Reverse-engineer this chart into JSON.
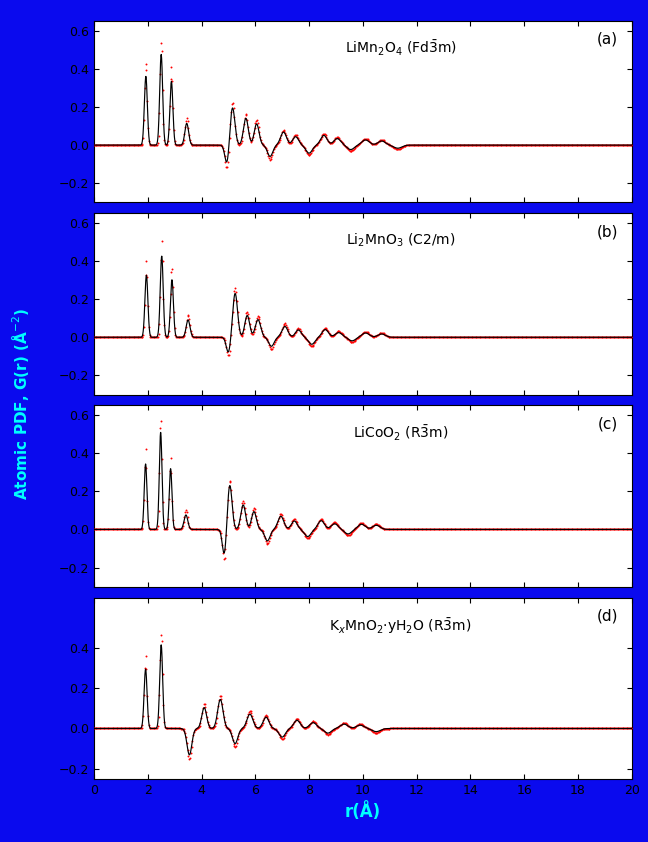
{
  "background_color": "#0a0aee",
  "panel_bg": "#ffffff",
  "fig_width": 6.48,
  "fig_height": 8.42,
  "labels": [
    "(a)",
    "(b)",
    "(c)",
    "(d)"
  ],
  "titles": [
    "LiMn$_2$O$_4$ (Fd$\\bar{3}$m)",
    "Li$_2$MnO$_3$ (C2/m)",
    "LiCoO$_2$ (R$\\bar{3}$m)",
    "K$_x$MnO$_2$$\\cdot$yH$_2$O (R$\\bar{3}$m)"
  ],
  "xlabel": "r(Å)",
  "ylabel": "Atomic PDF, G(r) (Å$^{-2}$)",
  "xlim": [
    0,
    20
  ],
  "ylim": [
    -0.3,
    0.65
  ],
  "ylim_d": [
    -0.25,
    0.65
  ],
  "yticks": [
    -0.2,
    0.0,
    0.2,
    0.4,
    0.6
  ],
  "yticks_d": [
    -0.2,
    0.0,
    0.2,
    0.4
  ],
  "xticks": [
    0,
    2,
    4,
    6,
    8,
    10,
    12,
    14,
    16,
    18,
    20
  ],
  "black_color": "black",
  "red_color": "red",
  "title_fontsize": 10,
  "label_fontsize": 11,
  "tick_fontsize": 9,
  "panel_label_fontsize": 11
}
